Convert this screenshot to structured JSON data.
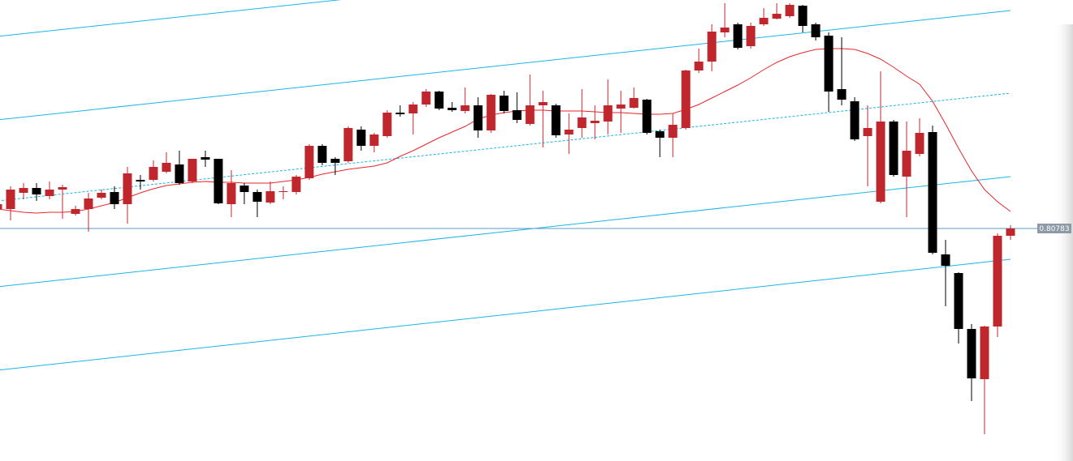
{
  "chart_data": {
    "type": "candlestick",
    "up_color": "#c0272d",
    "down_color": "#000000",
    "ylim": [
      0.79348,
      0.82193
    ],
    "last_price": 0.80783,
    "last_price_color": "#5b9bc4",
    "open": [
      0.80903,
      0.80903,
      0.81003,
      0.81033,
      0.80983,
      0.81023,
      0.80873,
      0.80903,
      0.80973,
      0.81008,
      0.80933,
      0.81083,
      0.81083,
      0.81133,
      0.81178,
      0.81073,
      0.81223,
      0.81213,
      0.80933,
      0.81048,
      0.81008,
      0.80943,
      0.81008,
      0.81008,
      0.81093,
      0.81293,
      0.81213,
      0.81198,
      0.81393,
      0.81293,
      0.81353,
      0.81498,
      0.81493,
      0.81548,
      0.81628,
      0.81528,
      0.81508,
      0.81543,
      0.81388,
      0.81603,
      0.81513,
      0.81428,
      0.81543,
      0.81543,
      0.81363,
      0.81403,
      0.81433,
      0.81443,
      0.81523,
      0.81528,
      0.81578,
      0.81383,
      0.81343,
      0.81403,
      0.81758,
      0.81813,
      0.81993,
      0.82043,
      0.81908,
      0.82043,
      0.82078,
      0.82093,
      0.82158,
      0.82043,
      0.81973,
      0.81643,
      0.81568,
      0.81353,
      0.80948,
      0.81443,
      0.81103,
      0.81243,
      0.81378,
      0.80623,
      0.80508,
      0.80163,
      0.79853,
      0.80178,
      0.80738
    ],
    "close": [
      0.80933,
      0.81023,
      0.81033,
      0.80993,
      0.81023,
      0.81038,
      0.80903,
      0.80968,
      0.81003,
      0.80933,
      0.81123,
      0.81073,
      0.81163,
      0.81188,
      0.81063,
      0.81213,
      0.81208,
      0.80938,
      0.81063,
      0.81008,
      0.80948,
      0.81013,
      0.81013,
      0.81103,
      0.81293,
      0.81188,
      0.81188,
      0.81403,
      0.81293,
      0.81363,
      0.81498,
      0.81488,
      0.81548,
      0.81628,
      0.81523,
      0.81513,
      0.81543,
      0.81388,
      0.81608,
      0.81508,
      0.81453,
      0.81543,
      0.81563,
      0.81358,
      0.81393,
      0.81468,
      0.81448,
      0.81543,
      0.81548,
      0.81588,
      0.81373,
      0.81343,
      0.81423,
      0.81758,
      0.81813,
      0.81998,
      0.82023,
      0.81898,
      0.82033,
      0.82083,
      0.82108,
      0.82163,
      0.82033,
      0.81963,
      0.81628,
      0.81578,
      0.81333,
      0.81403,
      0.81443,
      0.81113,
      0.81263,
      0.81373,
      0.80633,
      0.80553,
      0.80163,
      0.79858,
      0.80178,
      0.80738,
      0.80783
    ],
    "high": [
      0.80943,
      0.81043,
      0.81063,
      0.81063,
      0.81073,
      0.81053,
      0.80923,
      0.81003,
      0.81023,
      0.81043,
      0.81163,
      0.81113,
      0.81203,
      0.81253,
      0.81263,
      0.81213,
      0.81263,
      0.81213,
      0.81143,
      0.81063,
      0.81023,
      0.81073,
      0.81043,
      0.81113,
      0.81303,
      0.81303,
      0.81223,
      0.81413,
      0.81413,
      0.81373,
      0.81513,
      0.81543,
      0.81563,
      0.81643,
      0.81633,
      0.81563,
      0.81653,
      0.81593,
      0.81613,
      0.81633,
      0.81623,
      0.81733,
      0.81633,
      0.81553,
      0.81493,
      0.81643,
      0.81543,
      0.81703,
      0.81633,
      0.81653,
      0.81583,
      0.81393,
      0.81493,
      0.81763,
      0.81893,
      0.82043,
      0.82173,
      0.82053,
      0.82053,
      0.82143,
      0.82173,
      0.82173,
      0.82163,
      0.82053,
      0.81993,
      0.81963,
      0.81593,
      0.81543,
      0.81753,
      0.81453,
      0.81443,
      0.81463,
      0.81418,
      0.80713,
      0.80513,
      0.80193,
      0.80183,
      0.80753,
      0.80803
    ],
    "low": [
      0.80883,
      0.80833,
      0.80963,
      0.80953,
      0.80963,
      0.80843,
      0.80863,
      0.80763,
      0.80963,
      0.80903,
      0.80813,
      0.81023,
      0.81073,
      0.81123,
      0.81053,
      0.81063,
      0.81163,
      0.80933,
      0.80853,
      0.80933,
      0.80853,
      0.80933,
      0.80963,
      0.80993,
      0.81083,
      0.81173,
      0.81113,
      0.81188,
      0.81263,
      0.81253,
      0.81343,
      0.81473,
      0.81363,
      0.81533,
      0.81513,
      0.81503,
      0.81493,
      0.81343,
      0.81373,
      0.81493,
      0.81433,
      0.81418,
      0.81283,
      0.81343,
      0.81243,
      0.81343,
      0.81333,
      0.81363,
      0.81373,
      0.81523,
      0.81363,
      0.81223,
      0.81223,
      0.81393,
      0.81743,
      0.81753,
      0.81963,
      0.81888,
      0.81893,
      0.82033,
      0.82073,
      0.82083,
      0.81993,
      0.81943,
      0.81503,
      0.81543,
      0.81323,
      0.81043,
      0.80938,
      0.81103,
      0.80853,
      0.81228,
      0.80623,
      0.80303,
      0.80073,
      0.79718,
      0.79513,
      0.80113,
      0.80713
    ],
    "ma": {
      "color": "#e8262b",
      "values": [
        0.80903,
        0.80893,
        0.80883,
        0.80878,
        0.80883,
        0.80883,
        0.80888,
        0.80903,
        0.80923,
        0.80943,
        0.80973,
        0.81003,
        0.81028,
        0.81048,
        0.81058,
        0.81068,
        0.81073,
        0.81068,
        0.81068,
        0.81063,
        0.81063,
        0.81063,
        0.81073,
        0.81083,
        0.81098,
        0.81118,
        0.81133,
        0.81148,
        0.81158,
        0.81168,
        0.81188,
        0.81228,
        0.81263,
        0.81303,
        0.81343,
        0.81378,
        0.81413,
        0.81458,
        0.81483,
        0.81498,
        0.81508,
        0.81513,
        0.81513,
        0.81508,
        0.81508,
        0.81508,
        0.81503,
        0.81498,
        0.81498,
        0.81493,
        0.81488,
        0.81488,
        0.81493,
        0.81518,
        0.81548,
        0.81588,
        0.81628,
        0.81668,
        0.81713,
        0.81763,
        0.81808,
        0.81843,
        0.81868,
        0.81888,
        0.81893,
        0.81893,
        0.81888,
        0.81863,
        0.81828,
        0.81778,
        0.81723,
        0.81673,
        0.81568,
        0.81428,
        0.81278,
        0.81138,
        0.81023,
        0.80948,
        0.80888
      ]
    },
    "channels": [
      {
        "color": "#1ab4e6",
        "dashed": false,
        "values": [
          0.81968,
          0.82638
        ]
      },
      {
        "color": "#1ab4e6",
        "dashed": false,
        "values": [
          0.81453,
          0.82128
        ]
      },
      {
        "color": "#1ab4e6",
        "dashed": true,
        "values": [
          0.80953,
          0.81618
        ]
      },
      {
        "color": "#1ab4e6",
        "dashed": false,
        "values": [
          0.80423,
          0.81103
        ]
      },
      {
        "color": "#1ab4e6",
        "dashed": false,
        "values": [
          0.79908,
          0.80593
        ]
      }
    ]
  }
}
